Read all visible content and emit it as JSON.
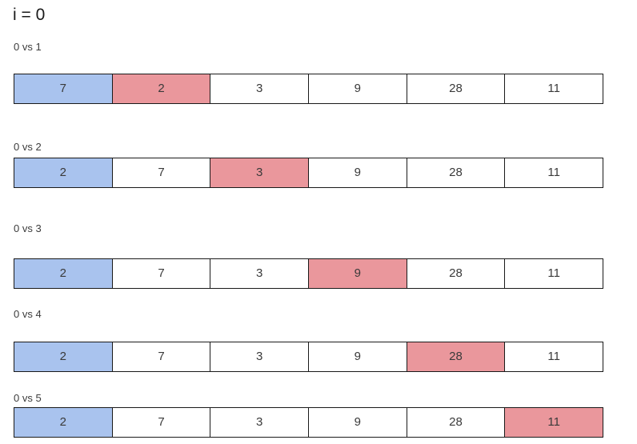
{
  "title": "i = 0",
  "colors": {
    "background": "#ffffff",
    "title_text": "#1a1a1a",
    "label_text": "#3c3c3c",
    "cell_text": "#3a3a3a",
    "cell_border": "#1a1a1a",
    "compare_current_blue": "#a9c3ee",
    "compare_candidate_pink": "#ea979c"
  },
  "steps": [
    {
      "label": "0 vs 1",
      "values": [
        "7",
        "2",
        "3",
        "9",
        "28",
        "11"
      ],
      "blue_index": 0,
      "red_index": 1
    },
    {
      "label": "0 vs 2",
      "values": [
        "2",
        "7",
        "3",
        "9",
        "28",
        "11"
      ],
      "blue_index": 0,
      "red_index": 2
    },
    {
      "label": "0 vs 3",
      "values": [
        "2",
        "7",
        "3",
        "9",
        "28",
        "11"
      ],
      "blue_index": 0,
      "red_index": 3
    },
    {
      "label": "0 vs 4",
      "values": [
        "2",
        "7",
        "3",
        "9",
        "28",
        "11"
      ],
      "blue_index": 0,
      "red_index": 4
    },
    {
      "label": "0 vs 5",
      "values": [
        "2",
        "7",
        "3",
        "9",
        "28",
        "11"
      ],
      "blue_index": 0,
      "red_index": 5
    }
  ]
}
